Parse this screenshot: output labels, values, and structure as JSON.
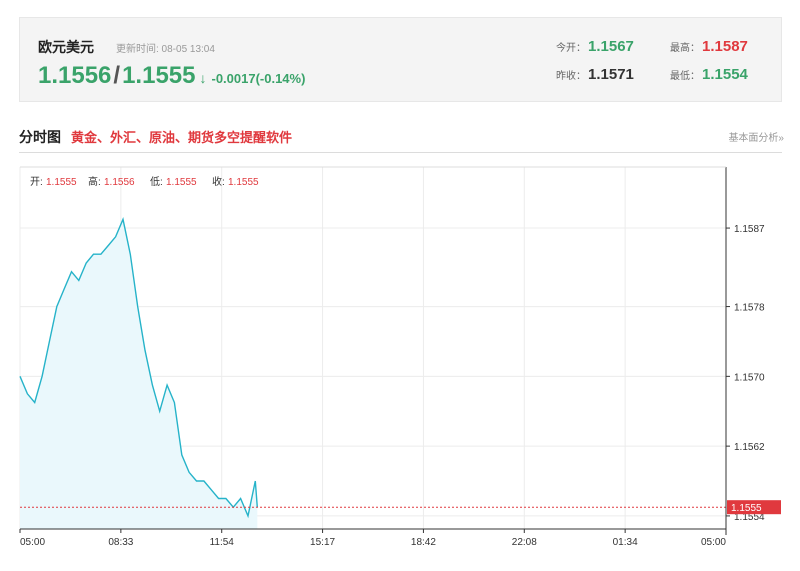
{
  "header": {
    "pair": "欧元美元",
    "update_time": "更新时间: 08-05 13:04",
    "bid": "1.1556",
    "separator": "/",
    "ask": "1.1555",
    "arrow": "↓",
    "change": "-0.0017(-0.14%)"
  },
  "stats": {
    "open_label": "今开：",
    "open": "1.1567",
    "high_label": "最高：",
    "high": "1.1587",
    "prev_close_label": "昨收：",
    "prev_close": "1.1571",
    "low_label": "最低：",
    "low": "1.1554"
  },
  "section": {
    "title": "分时图",
    "link": "黄金、外汇、原油、期货多空提醒软件",
    "more": "基本面分析»"
  },
  "ohlc": {
    "open_label": "开:",
    "open": "1.1555",
    "high_label": "高:",
    "high": "1.1556",
    "low_label": "低:",
    "low": "1.1555",
    "close_label": "收:",
    "close": "1.1555"
  },
  "colors": {
    "line": "#26b3c9",
    "area": "#eaf8fc",
    "up": "#3aa36a",
    "down": "#e0393e",
    "grid": "#ececec"
  },
  "chart_data": {
    "type": "area",
    "xlabel": "",
    "ylabel": "",
    "x_ticks": [
      "05:00",
      "08:33",
      "11:54",
      "15:17",
      "18:42",
      "22:08",
      "01:34",
      "05:00"
    ],
    "y_ticks": [
      "1.1587",
      "1.1578",
      "1.1570",
      "1.1562",
      "1.1554"
    ],
    "ylim": [
      1.15525,
      1.1594
    ],
    "current_price": "1.1555",
    "grid": true,
    "series": [
      {
        "times": [
          "05:00",
          "05:15",
          "05:30",
          "05:45",
          "06:00",
          "06:15",
          "06:30",
          "06:45",
          "07:00",
          "07:15",
          "07:30",
          "07:45",
          "08:00",
          "08:15",
          "08:30",
          "08:45",
          "09:00",
          "09:15",
          "09:30",
          "09:45",
          "10:00",
          "10:15",
          "10:30",
          "10:45",
          "11:00",
          "11:15",
          "11:30",
          "11:45",
          "12:00",
          "12:15",
          "12:30",
          "12:45",
          "13:00",
          "13:04"
        ],
        "values": [
          1.157,
          1.1568,
          1.1567,
          1.157,
          1.1574,
          1.1578,
          1.158,
          1.1582,
          1.1581,
          1.1583,
          1.1584,
          1.1584,
          1.1585,
          1.1586,
          1.1588,
          1.1584,
          1.1578,
          1.1573,
          1.1569,
          1.1566,
          1.1569,
          1.1567,
          1.1561,
          1.1559,
          1.1558,
          1.1558,
          1.1557,
          1.1556,
          1.1556,
          1.1555,
          1.1556,
          1.1554,
          1.1558,
          1.1555
        ]
      }
    ]
  }
}
